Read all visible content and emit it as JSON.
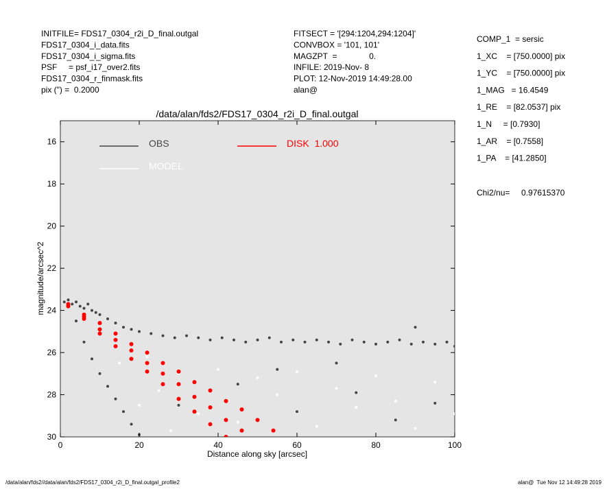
{
  "header": {
    "left": [
      "INITFILE= FDS17_0304_r2i_D_final.outgal",
      "FDS17_0304_i_data.fits",
      "FDS17_0304_i_sigma.fits",
      "PSF     = psf_i17_over2.fits",
      "FDS17_0304_r_finmask.fits",
      "pix (\") =  0.2000"
    ],
    "middle": [
      "FITSECT = '[294:1204,294:1204]'",
      "CONVBOX = '101, 101'",
      "MAGZPT  =              0.",
      "INFILE: 2019-Nov- 8",
      "PLOT: 12-Nov-2019 14:49:28.00",
      "alan@"
    ],
    "right": [
      "COMP_1  = sersic",
      "1_XC    = [750.0000] pix",
      "1_YC    = [750.0000] pix",
      "1_MAG   = 16.4549",
      "1_RE    = [82.0537] pix",
      "1_N     = [0.7930]",
      "1_AR    = [0.7558]",
      "1_PA    = [41.2850]"
    ],
    "chi2": "Chi2/nu=     0.97615370"
  },
  "footer": {
    "left": "/data/alan/fds2//data/alan/fds2/FDS17_0304_r2i_D_final.outgal_profile2",
    "right": "alan@  Tue Nov 12 14:49:28 2019"
  },
  "chart_data": {
    "type": "scatter",
    "title": "/data/alan/fds2/FDS17_0304_r2i_D_final.outgal",
    "xlabel": "Distance along sky [arcsec]",
    "ylabel": "magnitude/arcsec^2",
    "xlim": [
      0,
      100
    ],
    "ylim": [
      30,
      15
    ],
    "xticks": [
      0,
      20,
      40,
      60,
      80,
      100
    ],
    "yticks": [
      16,
      18,
      20,
      22,
      24,
      26,
      28,
      30
    ],
    "background": "#e5e5e5",
    "series": [
      {
        "name": "MODEL",
        "color": "#ffffff",
        "x": [
          20,
          25,
          30,
          35,
          40,
          45,
          50,
          55,
          60,
          65,
          70,
          75,
          80,
          85,
          90,
          95,
          100,
          15,
          22,
          28
        ],
        "values": [
          28.5,
          27.8,
          27,
          28.9,
          26.8,
          29.3,
          27.2,
          28,
          26.9,
          29.5,
          27.7,
          28.6,
          27.1,
          28.3,
          29.6,
          27.4,
          28.9,
          26.5,
          26.2,
          29.7
        ]
      },
      {
        "name": "OBS",
        "color": "#444444",
        "x": [
          1,
          2,
          3,
          4,
          5,
          6,
          7,
          8,
          9,
          10,
          12,
          14,
          16,
          18,
          20,
          23,
          26,
          29,
          32,
          35,
          38,
          41,
          44,
          47,
          50,
          53,
          56,
          59,
          62,
          65,
          68,
          71,
          74,
          77,
          80,
          83,
          86,
          89,
          90,
          92,
          95,
          98,
          100,
          4,
          6,
          8,
          10,
          12,
          14,
          16,
          18,
          20,
          30,
          45,
          60,
          75,
          85,
          95,
          55,
          70
        ],
        "values": [
          23.6,
          23.5,
          23.7,
          23.6,
          23.8,
          23.9,
          23.7,
          24.0,
          24.1,
          24.2,
          24.4,
          24.6,
          24.8,
          24.9,
          25.0,
          25.1,
          25.2,
          25.3,
          25.2,
          25.3,
          25.4,
          25.3,
          25.4,
          25.5,
          25.4,
          25.3,
          25.5,
          25.4,
          25.5,
          25.4,
          25.5,
          25.6,
          25.4,
          25.5,
          25.6,
          25.5,
          25.4,
          25.6,
          24.8,
          25.5,
          25.6,
          25.5,
          25.7,
          24.5,
          25.5,
          26.3,
          27.0,
          27.6,
          28.2,
          28.8,
          29.4,
          29.9,
          28.5,
          27.5,
          28.8,
          27.9,
          29.2,
          28.4,
          26.8,
          26.5
        ]
      },
      {
        "name": "DISK  1.000",
        "color": "#ff0000",
        "x": [
          2,
          6,
          10,
          14,
          18,
          22,
          26,
          30,
          34,
          38,
          42,
          46,
          50,
          54,
          2,
          6,
          10,
          14,
          18,
          22,
          26,
          30,
          34,
          38,
          42,
          2,
          6,
          10,
          14,
          18,
          22,
          26,
          30,
          34,
          38,
          42,
          46
        ],
        "values": [
          23.7,
          24.2,
          24.6,
          25.1,
          25.6,
          26.0,
          26.5,
          26.9,
          27.4,
          27.8,
          28.3,
          28.7,
          29.2,
          29.7,
          23.8,
          24.4,
          25.1,
          25.7,
          26.3,
          26.9,
          27.5,
          28.2,
          28.8,
          29.4,
          30.0,
          23.8,
          24.3,
          24.9,
          25.4,
          25.9,
          26.5,
          27.0,
          27.5,
          28.1,
          28.6,
          29.2,
          29.7
        ]
      }
    ]
  }
}
